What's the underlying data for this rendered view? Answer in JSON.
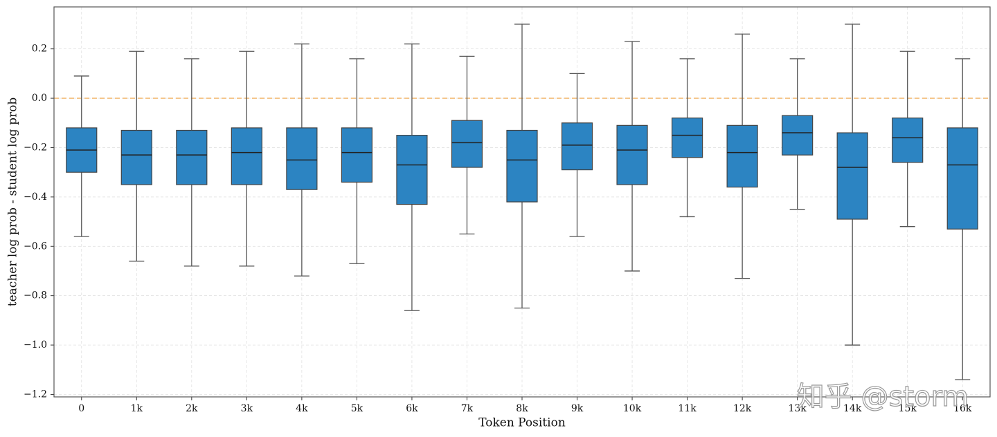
{
  "chart_data": {
    "type": "box",
    "xlabel": "Token Position",
    "ylabel": "teacher log prob - student log prob",
    "categories": [
      "0",
      "1k",
      "2k",
      "3k",
      "4k",
      "5k",
      "6k",
      "7k",
      "8k",
      "9k",
      "10k",
      "11k",
      "12k",
      "13k",
      "14k",
      "15k",
      "16k"
    ],
    "boxes": [
      {
        "whislo": -0.56,
        "q1": -0.3,
        "med": -0.21,
        "q3": -0.12,
        "whishi": 0.09
      },
      {
        "whislo": -0.66,
        "q1": -0.35,
        "med": -0.23,
        "q3": -0.13,
        "whishi": 0.19
      },
      {
        "whislo": -0.68,
        "q1": -0.35,
        "med": -0.23,
        "q3": -0.13,
        "whishi": 0.16
      },
      {
        "whislo": -0.68,
        "q1": -0.35,
        "med": -0.22,
        "q3": -0.12,
        "whishi": 0.19
      },
      {
        "whislo": -0.72,
        "q1": -0.37,
        "med": -0.25,
        "q3": -0.12,
        "whishi": 0.22
      },
      {
        "whislo": -0.67,
        "q1": -0.34,
        "med": -0.22,
        "q3": -0.12,
        "whishi": 0.16
      },
      {
        "whislo": -0.86,
        "q1": -0.43,
        "med": -0.27,
        "q3": -0.15,
        "whishi": 0.22
      },
      {
        "whislo": -0.55,
        "q1": -0.28,
        "med": -0.18,
        "q3": -0.09,
        "whishi": 0.17
      },
      {
        "whislo": -0.85,
        "q1": -0.42,
        "med": -0.25,
        "q3": -0.13,
        "whishi": 0.3
      },
      {
        "whislo": -0.56,
        "q1": -0.29,
        "med": -0.19,
        "q3": -0.1,
        "whishi": 0.1
      },
      {
        "whislo": -0.7,
        "q1": -0.35,
        "med": -0.21,
        "q3": -0.11,
        "whishi": 0.23
      },
      {
        "whislo": -0.48,
        "q1": -0.24,
        "med": -0.15,
        "q3": -0.08,
        "whishi": 0.16
      },
      {
        "whislo": -0.73,
        "q1": -0.36,
        "med": -0.22,
        "q3": -0.11,
        "whishi": 0.26
      },
      {
        "whislo": -0.45,
        "q1": -0.23,
        "med": -0.14,
        "q3": -0.07,
        "whishi": 0.16
      },
      {
        "whislo": -1.0,
        "q1": -0.49,
        "med": -0.28,
        "q3": -0.14,
        "whishi": 0.3
      },
      {
        "whislo": -0.52,
        "q1": -0.26,
        "med": -0.16,
        "q3": -0.08,
        "whishi": 0.19
      },
      {
        "whislo": -1.14,
        "q1": -0.53,
        "med": -0.27,
        "q3": -0.12,
        "whishi": 0.16
      }
    ],
    "color": "#2c84c2",
    "reference_line": {
      "value": 0,
      "color": "#f0b060"
    },
    "ylim": [
      -1.21,
      0.37
    ],
    "yticks": [
      0.2,
      {
        "value": 0,
        "label": "0.0"
      },
      {
        "value": -0.2,
        "label": "−0.2"
      },
      {
        "value": -0.4,
        "label": "−0.4"
      },
      {
        "value": -0.6,
        "label": "−0.6"
      },
      {
        "value": -0.8,
        "label": "−0.8"
      },
      {
        "value": -1.0,
        "label": "−1.0"
      },
      {
        "value": -1.2,
        "label": "−1.2"
      }
    ],
    "grid": true,
    "watermark": "知乎 @storm"
  }
}
